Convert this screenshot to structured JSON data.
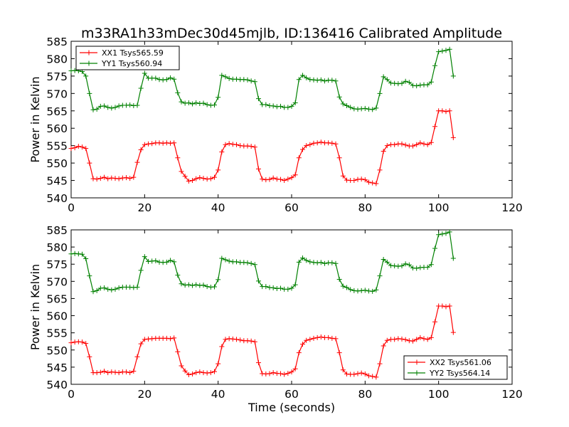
{
  "chart_data": [
    {
      "type": "line",
      "title": "m33RA1h33mDec30d45mjlb, ID:136416 Calibrated Amplitude",
      "xlabel": "",
      "ylabel": "Power in Kelvin",
      "xlim": [
        0,
        120
      ],
      "ylim": [
        540,
        585
      ],
      "x_ticks": [
        0,
        20,
        40,
        60,
        80,
        100,
        120
      ],
      "y_ticks": [
        540,
        545,
        550,
        555,
        560,
        565,
        570,
        575,
        580,
        585
      ],
      "grid": false,
      "legend_position": "top-left",
      "x": [
        0,
        1,
        2,
        3,
        4,
        5,
        6,
        7,
        8,
        9,
        10,
        11,
        12,
        13,
        14,
        15,
        16,
        17,
        18,
        19,
        20,
        21,
        22,
        23,
        24,
        25,
        26,
        27,
        28,
        29,
        30,
        31,
        32,
        33,
        34,
        35,
        36,
        37,
        38,
        39,
        40,
        41,
        42,
        43,
        44,
        45,
        46,
        47,
        48,
        49,
        50,
        51,
        52,
        53,
        54,
        55,
        56,
        57,
        58,
        59,
        60,
        61,
        62,
        63,
        64,
        65,
        66,
        67,
        68,
        69,
        70,
        71,
        72,
        73,
        74,
        75,
        76,
        77,
        78,
        79,
        80,
        81,
        82,
        83,
        84,
        85,
        86,
        87,
        88,
        89,
        90,
        91,
        92,
        93,
        94,
        95,
        96,
        97,
        98,
        99,
        100,
        101,
        102,
        103,
        104
      ],
      "series": [
        {
          "name": "XX1 Tsys565.59",
          "color": "#ff0000",
          "values": [
            554.2,
            554.4,
            554.8,
            554.6,
            554.2,
            550.0,
            545.5,
            545.4,
            545.6,
            545.9,
            545.5,
            545.7,
            545.6,
            545.5,
            545.7,
            545.8,
            545.6,
            545.9,
            550.2,
            553.8,
            555.3,
            555.5,
            555.6,
            555.8,
            555.8,
            555.7,
            555.8,
            555.7,
            555.8,
            551.5,
            547.6,
            546.2,
            544.8,
            545.0,
            545.5,
            545.8,
            545.6,
            545.4,
            545.5,
            545.9,
            548.0,
            553.2,
            555.3,
            555.6,
            555.4,
            555.3,
            555.0,
            554.9,
            554.9,
            554.8,
            554.6,
            548.3,
            545.4,
            545.2,
            545.3,
            545.7,
            545.4,
            545.3,
            545.0,
            545.4,
            545.8,
            546.6,
            551.5,
            553.9,
            555.0,
            555.3,
            555.7,
            555.8,
            556.0,
            555.8,
            555.8,
            555.7,
            555.5,
            551.5,
            546.3,
            545.1,
            545.0,
            545.0,
            545.3,
            545.4,
            545.2,
            544.5,
            544.3,
            544.1,
            548.0,
            553.4,
            555.0,
            555.3,
            555.3,
            555.5,
            555.5,
            555.2,
            554.9,
            554.9,
            555.3,
            555.8,
            555.5,
            555.3,
            555.9,
            560.5,
            565.0,
            565.0,
            564.8,
            565.0,
            557.3
          ]
        },
        {
          "name": "YY1 Tsys560.94",
          "color": "#008000",
          "values": [
            576.5,
            576.6,
            576.5,
            576.3,
            575.0,
            570.0,
            565.3,
            565.5,
            566.3,
            566.4,
            566.0,
            565.8,
            566.0,
            566.4,
            566.6,
            566.6,
            566.7,
            566.5,
            566.6,
            571.5,
            575.8,
            574.4,
            574.4,
            574.4,
            574.0,
            573.9,
            574.0,
            574.5,
            574.1,
            570.2,
            567.6,
            567.2,
            567.3,
            567.0,
            567.3,
            567.1,
            567.2,
            566.8,
            566.6,
            566.7,
            568.9,
            575.2,
            574.8,
            574.3,
            574.1,
            574.1,
            574.0,
            574.0,
            573.9,
            573.6,
            573.4,
            568.5,
            566.8,
            566.8,
            566.5,
            566.4,
            566.2,
            566.3,
            566.0,
            566.0,
            566.3,
            567.3,
            574.0,
            575.2,
            574.5,
            574.0,
            573.9,
            573.8,
            573.9,
            573.6,
            573.8,
            573.8,
            573.6,
            569.0,
            567.0,
            566.5,
            566.0,
            565.6,
            565.5,
            565.6,
            565.7,
            565.5,
            565.4,
            565.8,
            570.0,
            574.8,
            574.0,
            573.0,
            572.9,
            572.8,
            572.9,
            573.5,
            573.2,
            572.3,
            572.2,
            572.4,
            572.5,
            572.5,
            573.3,
            578.0,
            582.0,
            582.2,
            582.4,
            582.7,
            575.0
          ]
        }
      ]
    },
    {
      "type": "line",
      "title": "",
      "xlabel": "Time (seconds)",
      "ylabel": "Power in Kelvin",
      "xlim": [
        0,
        120
      ],
      "ylim": [
        540,
        585
      ],
      "x_ticks": [
        0,
        20,
        40,
        60,
        80,
        100,
        120
      ],
      "y_ticks": [
        540,
        545,
        550,
        555,
        560,
        565,
        570,
        575,
        580,
        585
      ],
      "grid": false,
      "legend_position": "bottom-right",
      "x": [
        0,
        1,
        2,
        3,
        4,
        5,
        6,
        7,
        8,
        9,
        10,
        11,
        12,
        13,
        14,
        15,
        16,
        17,
        18,
        19,
        20,
        21,
        22,
        23,
        24,
        25,
        26,
        27,
        28,
        29,
        30,
        31,
        32,
        33,
        34,
        35,
        36,
        37,
        38,
        39,
        40,
        41,
        42,
        43,
        44,
        45,
        46,
        47,
        48,
        49,
        50,
        51,
        52,
        53,
        54,
        55,
        56,
        57,
        58,
        59,
        60,
        61,
        62,
        63,
        64,
        65,
        66,
        67,
        68,
        69,
        70,
        71,
        72,
        73,
        74,
        75,
        76,
        77,
        78,
        79,
        80,
        81,
        82,
        83,
        84,
        85,
        86,
        87,
        88,
        89,
        90,
        91,
        92,
        93,
        94,
        95,
        96,
        97,
        98,
        99,
        100,
        101,
        102,
        103,
        104
      ],
      "series": [
        {
          "name": "XX2 Tsys561.06",
          "color": "#ff0000",
          "values": [
            552.1,
            552.3,
            552.4,
            552.3,
            551.9,
            548.0,
            543.4,
            543.4,
            543.5,
            543.8,
            543.4,
            543.6,
            543.5,
            543.4,
            543.6,
            543.6,
            543.4,
            543.8,
            548.0,
            551.8,
            553.1,
            553.2,
            553.3,
            553.4,
            553.4,
            553.4,
            553.4,
            553.3,
            553.5,
            549.5,
            545.4,
            543.9,
            542.8,
            543.0,
            543.4,
            543.6,
            543.4,
            543.3,
            543.4,
            543.7,
            546.0,
            551.0,
            553.1,
            553.3,
            553.2,
            553.1,
            552.9,
            552.7,
            552.7,
            552.6,
            552.4,
            546.3,
            543.1,
            543.0,
            543.1,
            543.4,
            543.2,
            543.1,
            542.9,
            543.2,
            543.6,
            544.5,
            549.2,
            551.7,
            552.8,
            553.1,
            553.4,
            553.6,
            553.8,
            553.6,
            553.6,
            553.4,
            553.3,
            549.2,
            544.2,
            543.0,
            542.9,
            542.9,
            543.1,
            543.3,
            543.0,
            542.5,
            542.3,
            542.1,
            546.0,
            551.2,
            552.8,
            553.1,
            553.1,
            553.3,
            553.2,
            553.0,
            552.7,
            552.6,
            553.1,
            553.6,
            553.3,
            553.1,
            553.6,
            558.2,
            562.8,
            562.8,
            562.6,
            562.8,
            555.1
          ]
        },
        {
          "name": "YY2 Tsys564.14",
          "color": "#008000",
          "values": [
            578.0,
            578.1,
            578.0,
            577.9,
            576.6,
            571.6,
            567.0,
            567.3,
            568.0,
            568.1,
            567.7,
            567.5,
            567.7,
            568.1,
            568.3,
            568.3,
            568.3,
            568.2,
            568.3,
            573.2,
            577.2,
            575.8,
            575.9,
            576.0,
            575.6,
            575.5,
            575.6,
            576.1,
            575.7,
            571.8,
            569.3,
            568.9,
            569.0,
            568.8,
            569.0,
            568.8,
            568.9,
            568.5,
            568.3,
            568.4,
            570.5,
            576.7,
            576.3,
            575.9,
            575.7,
            575.7,
            575.5,
            575.5,
            575.4,
            575.2,
            574.9,
            570.1,
            568.5,
            568.5,
            568.2,
            568.1,
            567.9,
            568.0,
            567.7,
            567.7,
            568.0,
            569.0,
            575.6,
            576.8,
            576.1,
            575.7,
            575.5,
            575.4,
            575.5,
            575.2,
            575.4,
            575.4,
            575.2,
            570.6,
            568.6,
            568.2,
            567.6,
            567.3,
            567.2,
            567.3,
            567.4,
            567.2,
            567.1,
            567.5,
            571.6,
            576.4,
            575.6,
            574.6,
            574.5,
            574.4,
            574.5,
            575.1,
            574.8,
            573.9,
            573.8,
            574.0,
            574.1,
            574.1,
            574.9,
            579.6,
            583.6,
            583.8,
            584.0,
            584.4,
            576.7
          ]
        }
      ]
    }
  ]
}
